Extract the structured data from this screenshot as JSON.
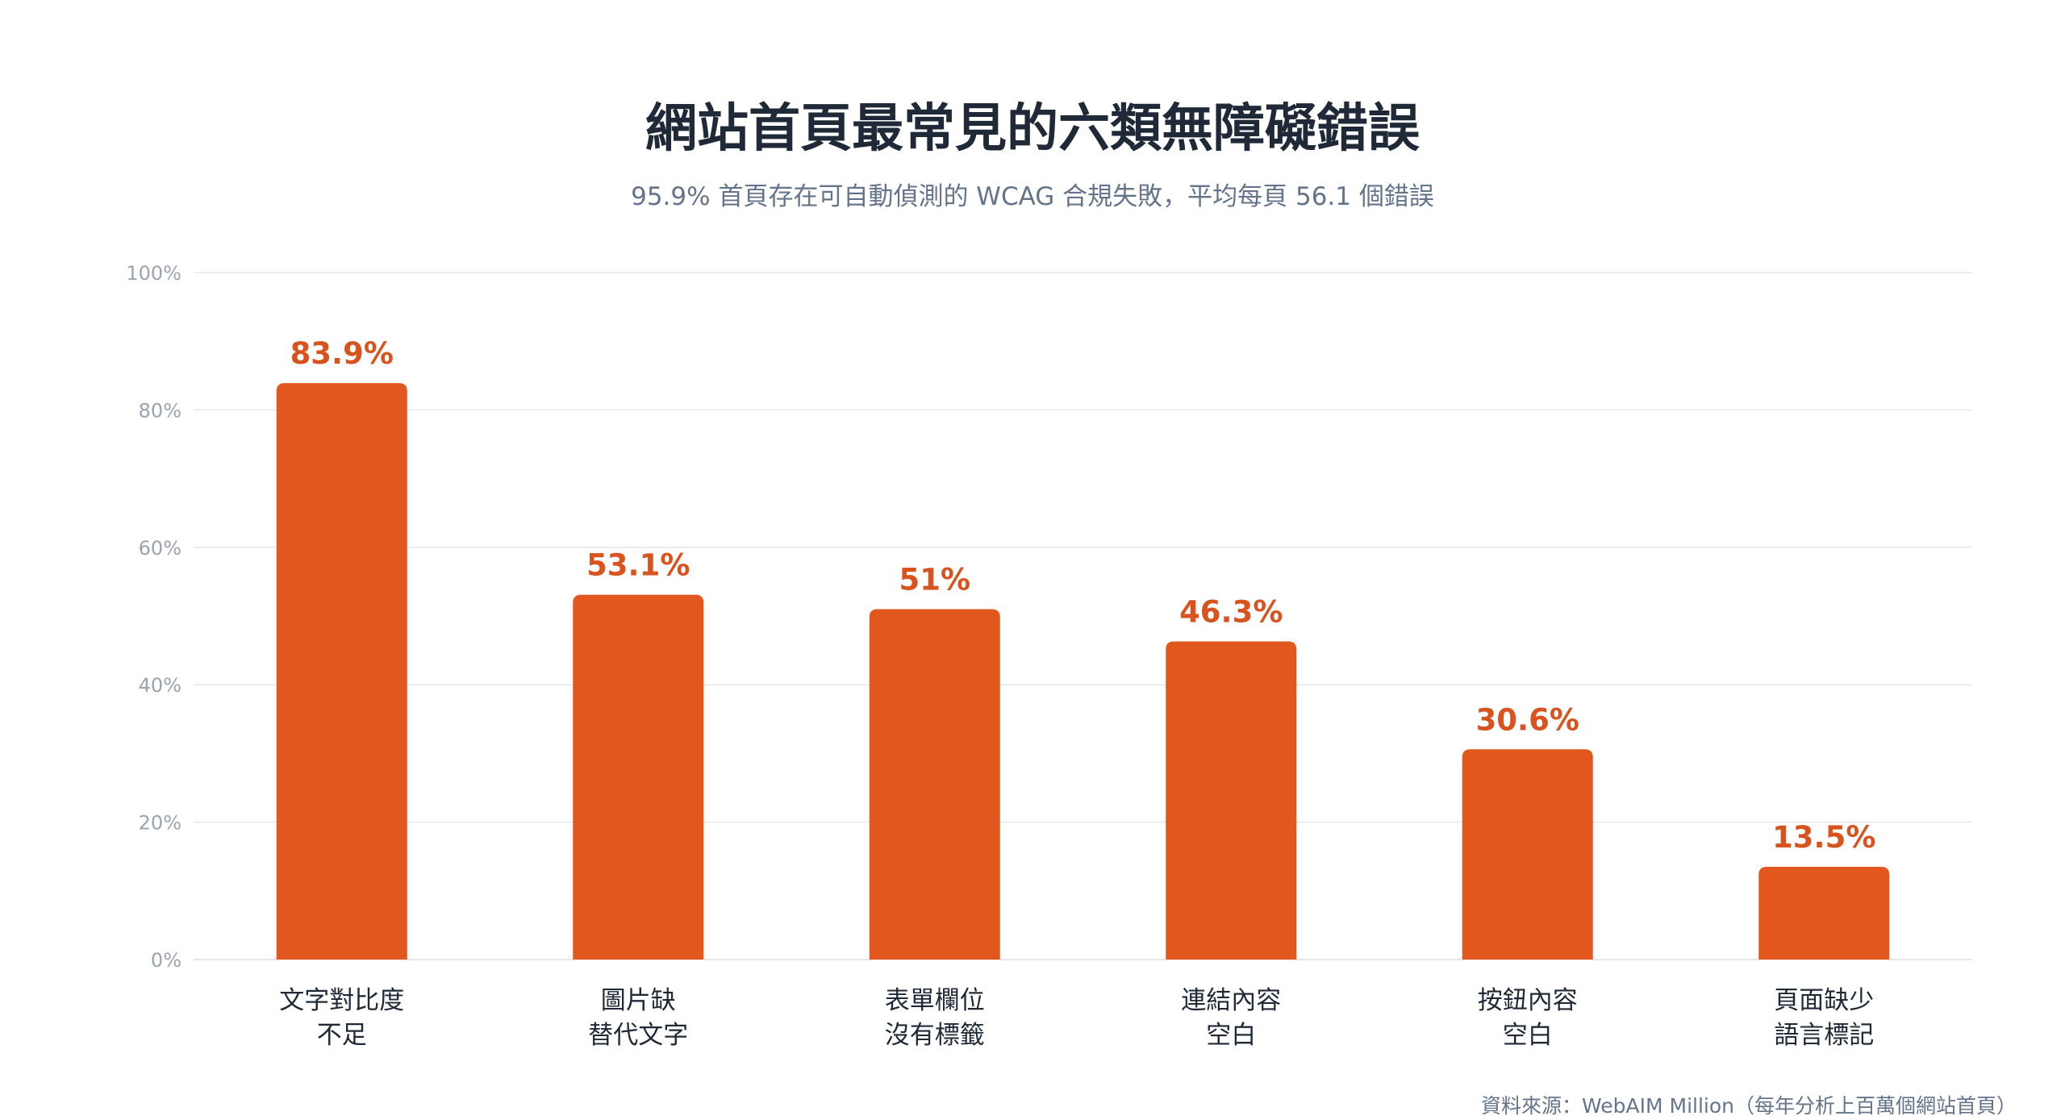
{
  "title": "網站首頁最常見的六類無障礙錯誤",
  "subtitle": "95.9% 首頁存在可自動偵測的 WCAG 合規失敗，平均每頁 56.1 個錯誤",
  "source": "資料來源：WebAIM Million（每年分析上百萬個網站首頁）",
  "chart_data": {
    "type": "bar",
    "categories": [
      [
        "文字對比度",
        "不足"
      ],
      [
        "圖片缺",
        "替代文字"
      ],
      [
        "表單欄位",
        "沒有標籤"
      ],
      [
        "連結內容",
        "空白"
      ],
      [
        "按鈕內容",
        "空白"
      ],
      [
        "頁面缺少",
        "語言標記"
      ]
    ],
    "values": [
      83.9,
      53.1,
      51,
      46.3,
      30.6,
      13.5
    ],
    "value_labels": [
      "83.9%",
      "53.1%",
      "51%",
      "46.3%",
      "30.6%",
      "13.5%"
    ],
    "ylim": [
      0,
      100
    ],
    "yticks": [
      0,
      20,
      40,
      60,
      80,
      100
    ],
    "ytick_labels": [
      "0%",
      "20%",
      "40%",
      "60%",
      "80%",
      "100%"
    ],
    "grid": true,
    "legend": "none"
  },
  "colors": {
    "bar": "#E2571E",
    "value_label": "#D9531E",
    "grid": "#e5e7eb",
    "axis_tick": "#9ca3af",
    "category_label": "#1f2937"
  }
}
